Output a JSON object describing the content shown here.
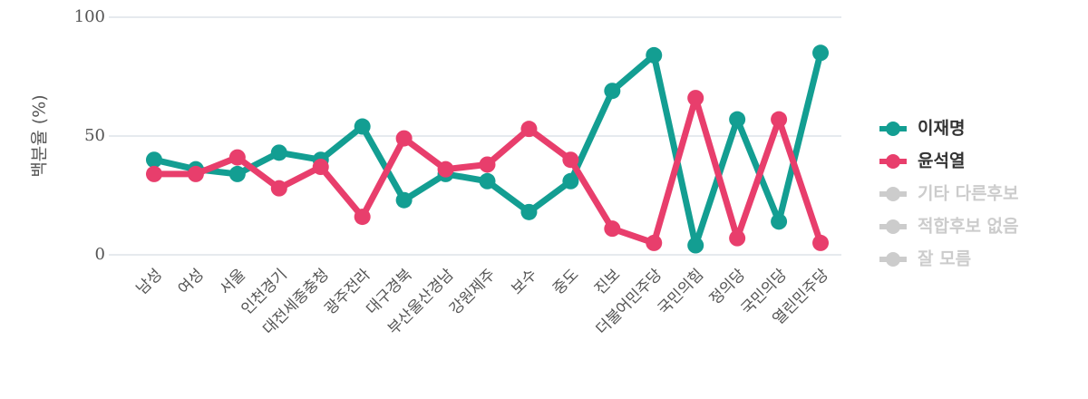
{
  "chart_data": {
    "type": "line",
    "y_label": "백분율 (%)",
    "categories": [
      "남성",
      "여성",
      "서울",
      "인천경기",
      "대전세종충청",
      "광주전라",
      "대구경북",
      "부산울산경남",
      "강원제주",
      "보수",
      "중도",
      "진보",
      "더불어민주당",
      "국민의힘",
      "정의당",
      "국민의당",
      "열린민주당"
    ],
    "series": [
      {
        "name": "이재명",
        "color": "#139e92",
        "values": [
          40,
          36,
          34,
          43,
          40,
          54,
          23,
          34,
          31,
          18,
          31,
          69,
          84,
          4,
          57,
          14,
          85
        ]
      },
      {
        "name": "윤석열",
        "color": "#e83e6c",
        "values": [
          34,
          34,
          41,
          28,
          37,
          16,
          49,
          36,
          38,
          53,
          40,
          11,
          5,
          66,
          7,
          57,
          5
        ]
      }
    ],
    "legend_inactive": [
      "기타 다른후보",
      "적합후보 없음",
      "잘 모름"
    ],
    "inactive_color": "#cccccc",
    "ylim": [
      0,
      100
    ],
    "yticks": [
      0,
      50,
      100
    ],
    "grid": true
  }
}
